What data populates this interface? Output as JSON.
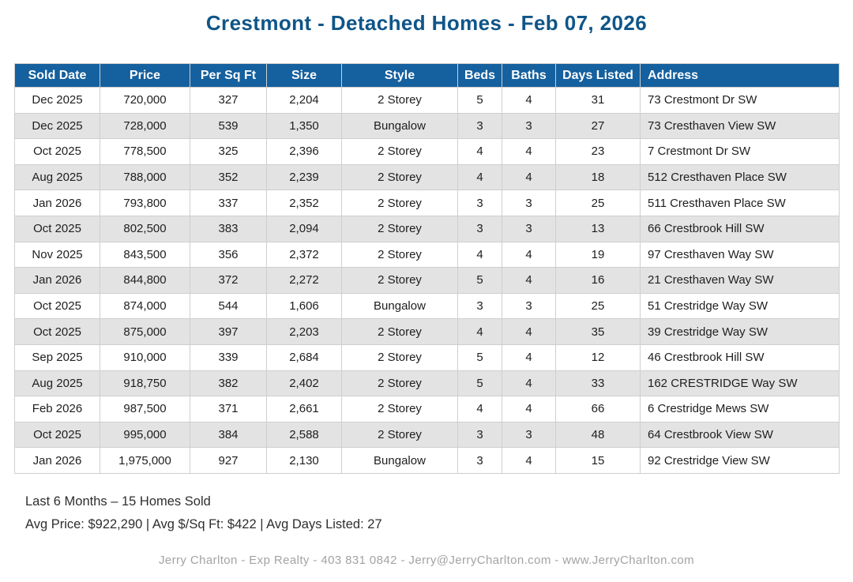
{
  "title": "Crestmont - Detached Homes - Feb 07, 2026",
  "colors": {
    "title_text": "#0f5588",
    "header_bg": "#15609e",
    "header_text": "#ffffff",
    "row_stripe": "#e3e3e3",
    "cell_border": "#cfcfcf",
    "body_text": "#1e1e1e",
    "footer_text": "#a3a3a3"
  },
  "table": {
    "columns": [
      "Sold Date",
      "Price",
      "Per Sq Ft",
      "Size",
      "Style",
      "Beds",
      "Baths",
      "Days Listed",
      "Address"
    ],
    "rows": [
      [
        "Dec 2025",
        "720,000",
        "327",
        "2,204",
        "2 Storey",
        "5",
        "4",
        "31",
        "73 Crestmont Dr SW"
      ],
      [
        "Dec 2025",
        "728,000",
        "539",
        "1,350",
        "Bungalow",
        "3",
        "3",
        "27",
        "73 Cresthaven View SW"
      ],
      [
        "Oct 2025",
        "778,500",
        "325",
        "2,396",
        "2 Storey",
        "4",
        "4",
        "23",
        "7 Crestmont Dr SW"
      ],
      [
        "Aug 2025",
        "788,000",
        "352",
        "2,239",
        "2 Storey",
        "4",
        "4",
        "18",
        "512 Cresthaven Place SW"
      ],
      [
        "Jan 2026",
        "793,800",
        "337",
        "2,352",
        "2 Storey",
        "3",
        "3",
        "25",
        "511 Cresthaven Place SW"
      ],
      [
        "Oct 2025",
        "802,500",
        "383",
        "2,094",
        "2 Storey",
        "3",
        "3",
        "13",
        "66 Crestbrook Hill SW"
      ],
      [
        "Nov 2025",
        "843,500",
        "356",
        "2,372",
        "2 Storey",
        "4",
        "4",
        "19",
        "97 Cresthaven Way SW"
      ],
      [
        "Jan 2026",
        "844,800",
        "372",
        "2,272",
        "2 Storey",
        "5",
        "4",
        "16",
        "21 Cresthaven Way SW"
      ],
      [
        "Oct 2025",
        "874,000",
        "544",
        "1,606",
        "Bungalow",
        "3",
        "3",
        "25",
        "51 Crestridge Way SW"
      ],
      [
        "Oct 2025",
        "875,000",
        "397",
        "2,203",
        "2 Storey",
        "4",
        "4",
        "35",
        "39 Crestridge Way SW"
      ],
      [
        "Sep 2025",
        "910,000",
        "339",
        "2,684",
        "2 Storey",
        "5",
        "4",
        "12",
        "46 Crestbrook Hill SW"
      ],
      [
        "Aug 2025",
        "918,750",
        "382",
        "2,402",
        "2 Storey",
        "5",
        "4",
        "33",
        "162 CRESTRIDGE Way SW"
      ],
      [
        "Feb 2026",
        "987,500",
        "371",
        "2,661",
        "2 Storey",
        "4",
        "4",
        "66",
        "6 Crestridge Mews SW"
      ],
      [
        "Oct 2025",
        "995,000",
        "384",
        "2,588",
        "2 Storey",
        "3",
        "3",
        "48",
        "64 Crestbrook View SW"
      ],
      [
        "Jan 2026",
        "1,975,000",
        "927",
        "2,130",
        "Bungalow",
        "3",
        "4",
        "15",
        "92 Crestridge View SW"
      ]
    ]
  },
  "summary": {
    "line1": "Last 6 Months – 15 Homes Sold",
    "line2": "Avg Price: $922,290 | Avg $/Sq Ft: $422 | Avg Days Listed: 27"
  },
  "footer": "Jerry Charlton - Exp Realty - 403 831 0842 - Jerry@JerryCharlton.com - www.JerryCharlton.com"
}
